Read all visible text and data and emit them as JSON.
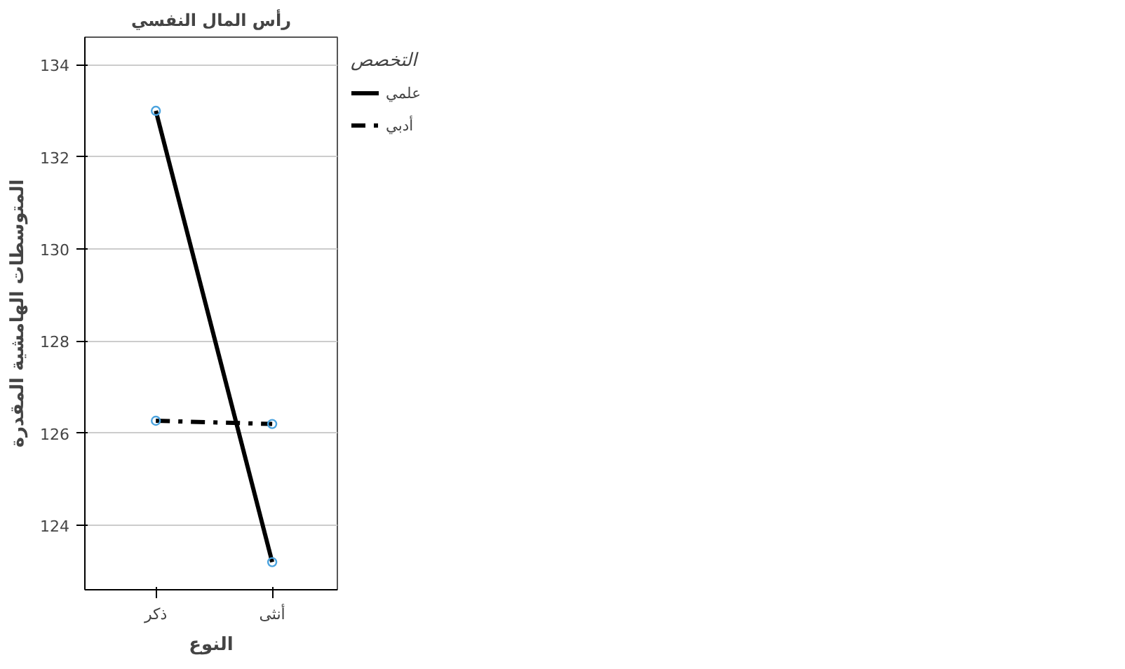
{
  "chart_data": {
    "type": "line",
    "title": "رأس المال النفسي",
    "xlabel": "النوع",
    "ylabel": "المتوسطات الهامشية المقدرة",
    "legend_title": "التخصص",
    "categories": [
      "ذكر",
      "أنثى"
    ],
    "series": [
      {
        "name": "علمي",
        "color": "#000000",
        "values": [
          133.0,
          123.2
        ],
        "line_style": "solid"
      },
      {
        "name": "أدبي",
        "color": "#000000",
        "values": [
          126.27,
          126.2
        ],
        "line_style": "dashed"
      }
    ],
    "ylim": [
      122.6,
      134.6
    ],
    "yticks": [
      124,
      126,
      128,
      130,
      132,
      134
    ],
    "grid": "y",
    "legend": "right",
    "marker": "circle"
  }
}
